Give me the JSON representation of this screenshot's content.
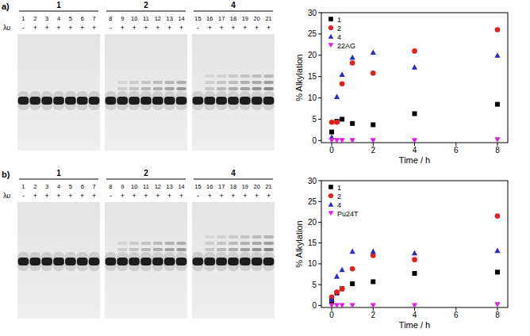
{
  "gels": [
    {
      "panel": "a)",
      "light_label": "λυ",
      "groups": [
        {
          "label": "1",
          "lanes": [
            "1",
            "2",
            "3",
            "4",
            "5",
            "6",
            "7"
          ],
          "light": [
            "-",
            "+",
            "+",
            "+",
            "+",
            "+",
            "+"
          ]
        },
        {
          "label": "2",
          "lanes": [
            "8",
            "9",
            "10",
            "11",
            "12",
            "13",
            "14"
          ],
          "light": [
            "-",
            "+",
            "+",
            "+",
            "+",
            "+",
            "+"
          ]
        },
        {
          "label": "4",
          "lanes": [
            "15",
            "16",
            "17",
            "18",
            "19",
            "20",
            "21"
          ],
          "light": [
            "-",
            "+",
            "+",
            "+",
            "+",
            "+",
            "+"
          ]
        }
      ]
    },
    {
      "panel": "b)",
      "light_label": "λυ",
      "groups": [
        {
          "label": "1",
          "lanes": [
            "1",
            "2",
            "3",
            "4",
            "5",
            "6",
            "7"
          ],
          "light": [
            "-",
            "+",
            "+",
            "+",
            "+",
            "+",
            "+"
          ]
        },
        {
          "label": "2",
          "lanes": [
            "8",
            "9",
            "10",
            "11",
            "12",
            "13",
            "14"
          ],
          "light": [
            "-",
            "+",
            "+",
            "+",
            "+",
            "+",
            "+"
          ]
        },
        {
          "label": "4",
          "lanes": [
            "15",
            "16",
            "17",
            "18",
            "19",
            "20",
            "21"
          ],
          "light": [
            "-",
            "+",
            "+",
            "+",
            "+",
            "+",
            "+"
          ]
        }
      ]
    }
  ],
  "chart_data": [
    {
      "type": "scatter",
      "xlabel": "Time / h",
      "ylabel": "% Alkylation",
      "xlim": [
        -0.5,
        8.5
      ],
      "ylim": [
        -0.5,
        30
      ],
      "xticks": [
        0,
        2,
        4,
        6,
        8
      ],
      "yticks": [
        0,
        5,
        10,
        15,
        20,
        25,
        30
      ],
      "legend": "upper left",
      "x": [
        0,
        0.25,
        0.5,
        1,
        2,
        4,
        8
      ],
      "series": [
        {
          "name": "1",
          "color": "#000000",
          "marker": "square",
          "values": [
            2.0,
            4.5,
            5.0,
            4.0,
            3.7,
            6.3,
            8.5
          ]
        },
        {
          "name": "2",
          "color": "#e3211c",
          "marker": "circle",
          "values": [
            4.3,
            4.3,
            13.3,
            18.2,
            15.8,
            21.0,
            26.0
          ]
        },
        {
          "name": "4",
          "color": "#2b2bc4",
          "marker": "triangle-up",
          "values": [
            0.8,
            10.3,
            15.5,
            19.5,
            20.7,
            17.2,
            20.0
          ]
        },
        {
          "name": "22AG",
          "color": "#e21ee2",
          "marker": "triangle-down",
          "values": [
            0,
            0,
            0,
            0,
            0,
            0,
            0.2
          ]
        }
      ]
    },
    {
      "type": "scatter",
      "xlabel": "Time / h",
      "ylabel": "% Alkylation",
      "xlim": [
        -0.5,
        8.5
      ],
      "ylim": [
        -0.5,
        30
      ],
      "xticks": [
        0,
        2,
        4,
        6,
        8
      ],
      "yticks": [
        0,
        5,
        10,
        15,
        20,
        25,
        30
      ],
      "legend": "upper left",
      "x": [
        0,
        0.25,
        0.5,
        1,
        2,
        4,
        8
      ],
      "series": [
        {
          "name": "1",
          "color": "#000000",
          "marker": "square",
          "values": [
            1.0,
            3.0,
            4.0,
            5.2,
            5.7,
            7.7,
            8.0
          ]
        },
        {
          "name": "2",
          "color": "#e3211c",
          "marker": "circle",
          "values": [
            2.0,
            3.2,
            4.0,
            8.8,
            12.0,
            11.0,
            21.5
          ]
        },
        {
          "name": "4",
          "color": "#2b2bc4",
          "marker": "triangle-up",
          "values": [
            1.4,
            7.0,
            8.6,
            13.0,
            13.0,
            12.6,
            13.2
          ]
        },
        {
          "name": "Pu24T",
          "color": "#e21ee2",
          "marker": "triangle-down",
          "values": [
            0,
            0,
            0,
            0,
            0,
            0,
            0.2
          ]
        }
      ]
    }
  ]
}
